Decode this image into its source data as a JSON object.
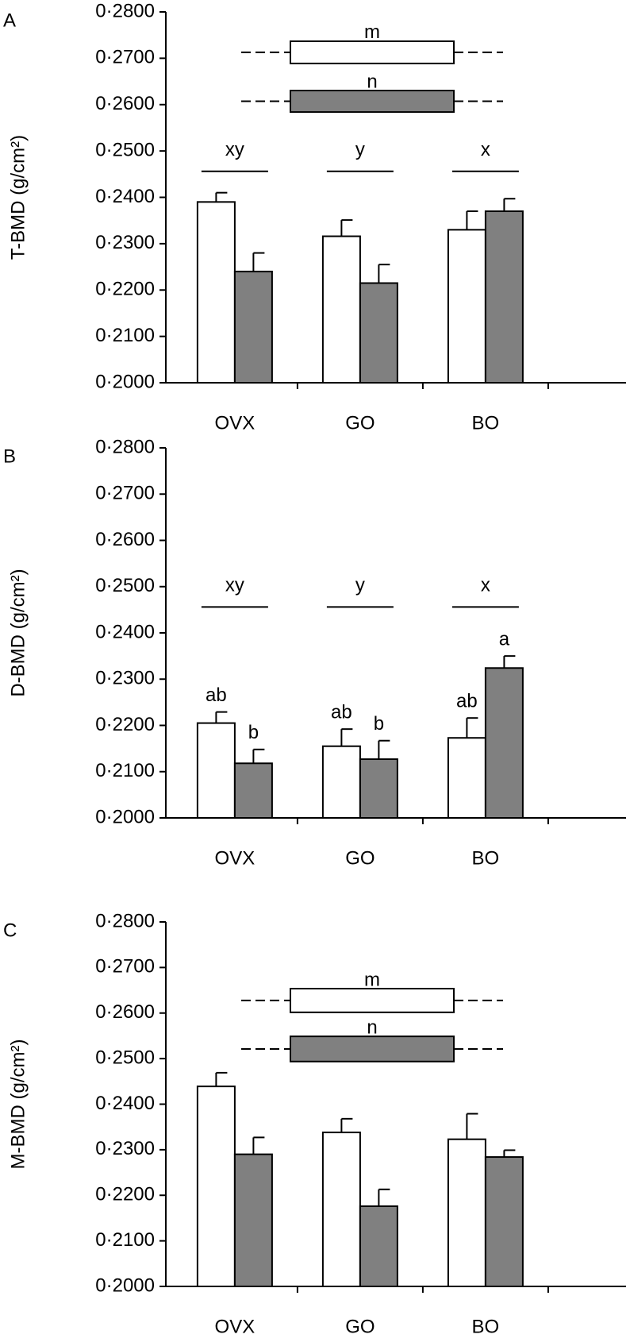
{
  "chart_data": [
    {
      "type": "bar",
      "panel": "A",
      "y_label": "T-BMD (g/cm²)",
      "categories": [
        "OVX",
        "GO",
        "BO"
      ],
      "series": [
        {
          "color": "#ffffff",
          "values": [
            0.239,
            0.2316,
            0.233
          ],
          "errors": [
            0.002,
            0.0035,
            0.004
          ]
        },
        {
          "color": "#808080",
          "values": [
            0.224,
            0.2215,
            0.237
          ],
          "errors": [
            0.004,
            0.004,
            0.0027
          ]
        }
      ],
      "ylim": [
        0.2,
        0.28
      ],
      "yticks": [
        {
          "value": 0.2,
          "label": "0·2000"
        },
        {
          "value": 0.21,
          "label": "0·2100"
        },
        {
          "value": 0.22,
          "label": "0·2200"
        },
        {
          "value": 0.23,
          "label": "0·2300"
        },
        {
          "value": 0.24,
          "label": "0·2400"
        },
        {
          "value": 0.25,
          "label": "0·2500"
        },
        {
          "value": 0.26,
          "label": "0·2600"
        },
        {
          "value": 0.27,
          "label": "0·2700"
        },
        {
          "value": 0.28,
          "label": "0·2800"
        }
      ],
      "group_letters": [
        "xy",
        "y",
        "x"
      ],
      "range_labels": [
        "m",
        "n"
      ]
    },
    {
      "type": "bar",
      "panel": "B",
      "y_label": "D-BMD (g/cm²)",
      "categories": [
        "OVX",
        "GO",
        "BO"
      ],
      "series": [
        {
          "color": "#ffffff",
          "values": [
            0.2205,
            0.2155,
            0.2173
          ],
          "errors": [
            0.0024,
            0.0037,
            0.0043
          ],
          "letters": [
            "ab",
            "ab",
            "ab"
          ]
        },
        {
          "color": "#808080",
          "values": [
            0.2118,
            0.2127,
            0.2324
          ],
          "errors": [
            0.003,
            0.004,
            0.0026
          ],
          "letters": [
            "b",
            "b",
            "a"
          ]
        }
      ],
      "ylim": [
        0.2,
        0.28
      ],
      "yticks": [
        {
          "value": 0.2,
          "label": "0·2000"
        },
        {
          "value": 0.21,
          "label": "0·2100"
        },
        {
          "value": 0.22,
          "label": "0·2200"
        },
        {
          "value": 0.23,
          "label": "0·2300"
        },
        {
          "value": 0.24,
          "label": "0·2400"
        },
        {
          "value": 0.25,
          "label": "0·2500"
        },
        {
          "value": 0.26,
          "label": "0·2600"
        },
        {
          "value": 0.27,
          "label": "0·2700"
        },
        {
          "value": 0.28,
          "label": "0·2800"
        }
      ],
      "group_letters": [
        "xy",
        "y",
        "x"
      ]
    },
    {
      "type": "bar",
      "panel": "C",
      "y_label": "M-BMD (g/cm²)",
      "categories": [
        "OVX",
        "GO",
        "BO"
      ],
      "series": [
        {
          "color": "#ffffff",
          "values": [
            0.2439,
            0.2338,
            0.2323
          ],
          "errors": [
            0.003,
            0.003,
            0.0056
          ]
        },
        {
          "color": "#808080",
          "values": [
            0.229,
            0.2176,
            0.2284
          ],
          "errors": [
            0.0037,
            0.0037,
            0.0015
          ]
        }
      ],
      "ylim": [
        0.2,
        0.28
      ],
      "yticks": [
        {
          "value": 0.2,
          "label": "0·2000"
        },
        {
          "value": 0.21,
          "label": "0·2100"
        },
        {
          "value": 0.22,
          "label": "0·2200"
        },
        {
          "value": 0.23,
          "label": "0·2300"
        },
        {
          "value": 0.24,
          "label": "0·2400"
        },
        {
          "value": 0.25,
          "label": "0·2500"
        },
        {
          "value": 0.26,
          "label": "0·2600"
        },
        {
          "value": 0.27,
          "label": "0·2700"
        },
        {
          "value": 0.28,
          "label": "0·2800"
        }
      ],
      "range_labels": [
        "m",
        "n"
      ]
    }
  ]
}
